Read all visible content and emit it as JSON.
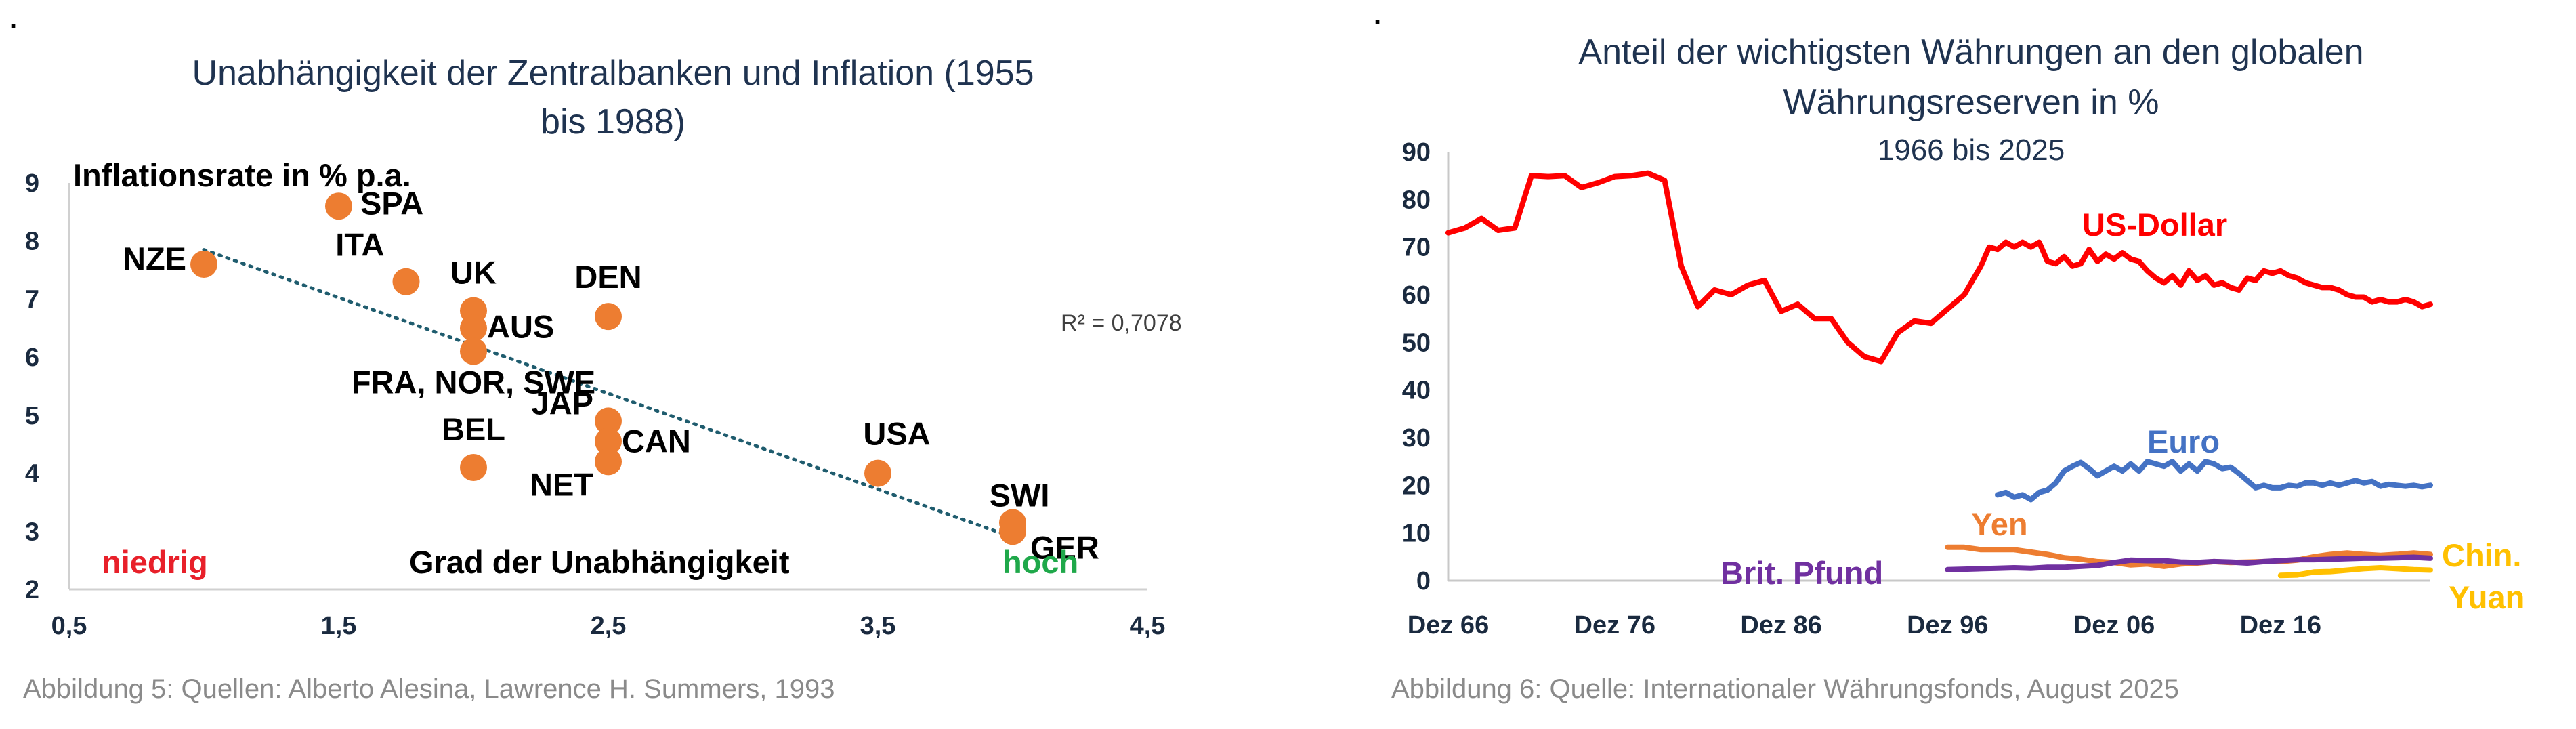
{
  "charts": [
    {
      "title_line1": "Unabhängigkeit der Zentralbanken und Inflation (1955",
      "title_line2": "bis 1988)",
      "caption": "Abbildung 5: Quellen: Alberto Alesina, Lawrence H. Summers, 1993",
      "annotations": {
        "ylabel": "Inflationsrate in % p.a.",
        "xlabel": "Grad der Unabhängigkeit",
        "low": "niedrig",
        "high": "hoch",
        "r2": "R² = 0,7078"
      },
      "colors": {
        "points": "#ed7d31",
        "trend": "#1f5c6e",
        "low": "#e8202a",
        "high": "#1fa84a"
      }
    },
    {
      "title_line1": "Anteil der wichtigsten Währungen an den globalen",
      "title_line2": "Währungsreserven in %",
      "subtitle": "1966 bis 2025",
      "caption": "Abbildung 6: Quelle: Internationaler Währungsfonds, August 2025"
    }
  ],
  "chart_data": [
    {
      "type": "scatter",
      "xlim": [
        0.5,
        4.5
      ],
      "ylim": [
        2,
        9
      ],
      "xticks": [
        "0,5",
        "1,5",
        "2,5",
        "3,5",
        "4,5"
      ],
      "yticks": [
        "2",
        "3",
        "4",
        "5",
        "6",
        "7",
        "8",
        "9"
      ],
      "points": [
        {
          "label": "NZE",
          "x": 1.0,
          "y": 7.6
        },
        {
          "label": "SPA",
          "x": 1.5,
          "y": 8.6
        },
        {
          "label": "ITA",
          "x": 1.75,
          "y": 7.3
        },
        {
          "label": "UK",
          "x": 2.0,
          "y": 6.8
        },
        {
          "label": "AUS",
          "x": 2.0,
          "y": 6.5
        },
        {
          "label": "FRA, NOR, SWE",
          "x": 2.0,
          "y": 6.1
        },
        {
          "label": "DEN",
          "x": 2.5,
          "y": 6.7
        },
        {
          "label": "BEL",
          "x": 2.0,
          "y": 4.1
        },
        {
          "label": "JAP",
          "x": 2.5,
          "y": 4.9
        },
        {
          "label": "CAN",
          "x": 2.5,
          "y": 4.55
        },
        {
          "label": "NET",
          "x": 2.5,
          "y": 4.2
        },
        {
          "label": "USA",
          "x": 3.5,
          "y": 4.0
        },
        {
          "label": "SWI",
          "x": 4.0,
          "y": 3.15
        },
        {
          "label": "GER",
          "x": 4.0,
          "y": 3.0
        }
      ],
      "trendline": {
        "x": [
          1.0,
          4.0
        ],
        "y": [
          7.85,
          2.9
        ]
      }
    },
    {
      "type": "line",
      "ylim": [
        0,
        90
      ],
      "yticks": [
        "0",
        "10",
        "20",
        "30",
        "40",
        "50",
        "60",
        "70",
        "80",
        "90"
      ],
      "xlim": [
        1966,
        2025
      ],
      "xticks": [
        {
          "label": "Dez 66",
          "x": 1966
        },
        {
          "label": "Dez 76",
          "x": 1976
        },
        {
          "label": "Dez 86",
          "x": 1986
        },
        {
          "label": "Dez 96",
          "x": 1996
        },
        {
          "label": "Dez 06",
          "x": 2006
        },
        {
          "label": "Dez 16",
          "x": 2016
        }
      ],
      "series": [
        {
          "name": "US-Dollar",
          "color": "#ff0000",
          "points": [
            [
              1966,
              73
            ],
            [
              1967,
              74
            ],
            [
              1968,
              76
            ],
            [
              1969,
              73.5
            ],
            [
              1970,
              74
            ],
            [
              1971,
              85
            ],
            [
              1972,
              84.8
            ],
            [
              1973,
              85
            ],
            [
              1974,
              82.5
            ],
            [
              1975,
              83.5
            ],
            [
              1976,
              84.8
            ],
            [
              1977,
              85
            ],
            [
              1978,
              85.5
            ],
            [
              1979,
              84
            ],
            [
              1980,
              66
            ],
            [
              1981,
              57.5
            ],
            [
              1982,
              61
            ],
            [
              1983,
              60
            ],
            [
              1984,
              62
            ],
            [
              1985,
              63
            ],
            [
              1986,
              56.5
            ],
            [
              1987,
              58
            ],
            [
              1988,
              55
            ],
            [
              1989,
              55
            ],
            [
              1990,
              50
            ],
            [
              1991,
              47
            ],
            [
              1992,
              46
            ],
            [
              1993,
              52
            ],
            [
              1994,
              54.5
            ],
            [
              1995,
              54
            ],
            [
              1996,
              57
            ],
            [
              1997,
              60
            ],
            [
              1998,
              66
            ],
            [
              1998.5,
              70
            ],
            [
              1999,
              69.5
            ],
            [
              1999.5,
              71
            ],
            [
              2000,
              70
            ],
            [
              2000.5,
              71
            ],
            [
              2001,
              70
            ],
            [
              2001.5,
              71
            ],
            [
              2002,
              67
            ],
            [
              2002.5,
              66.5
            ],
            [
              2003,
              68
            ],
            [
              2003.5,
              66
            ],
            [
              2004,
              66.5
            ],
            [
              2004.5,
              69.5
            ],
            [
              2005,
              67
            ],
            [
              2005.5,
              68.5
            ],
            [
              2006,
              67.5
            ],
            [
              2006.5,
              68.8
            ],
            [
              2007,
              67.5
            ],
            [
              2007.5,
              67
            ],
            [
              2008,
              65
            ],
            [
              2008.5,
              63.5
            ],
            [
              2009,
              62.5
            ],
            [
              2009.5,
              64
            ],
            [
              2010,
              62
            ],
            [
              2010.5,
              65
            ],
            [
              2011,
              63
            ],
            [
              2011.5,
              64
            ],
            [
              2012,
              62
            ],
            [
              2012.5,
              62.5
            ],
            [
              2013,
              61.5
            ],
            [
              2013.5,
              61
            ],
            [
              2014,
              63.5
            ],
            [
              2014.5,
              63
            ],
            [
              2015,
              65
            ],
            [
              2015.5,
              64.5
            ],
            [
              2016,
              65
            ],
            [
              2016.5,
              64
            ],
            [
              2017,
              63.5
            ],
            [
              2017.5,
              62.5
            ],
            [
              2018,
              62
            ],
            [
              2018.5,
              61.5
            ],
            [
              2019,
              61.5
            ],
            [
              2019.5,
              61
            ],
            [
              2020,
              60
            ],
            [
              2020.5,
              59.5
            ],
            [
              2021,
              59.5
            ],
            [
              2021.5,
              58.5
            ],
            [
              2022,
              59
            ],
            [
              2022.5,
              58.5
            ],
            [
              2023,
              58.5
            ],
            [
              2023.5,
              59
            ],
            [
              2024,
              58.5
            ],
            [
              2024.5,
              57.5
            ],
            [
              2025,
              58
            ]
          ]
        },
        {
          "name": "Euro",
          "color": "#4472c4",
          "points": [
            [
              1999,
              18
            ],
            [
              1999.5,
              18.5
            ],
            [
              2000,
              17.5
            ],
            [
              2000.5,
              18
            ],
            [
              2001,
              17
            ],
            [
              2001.5,
              18.5
            ],
            [
              2002,
              19
            ],
            [
              2002.5,
              20.5
            ],
            [
              2003,
              23
            ],
            [
              2003.5,
              24
            ],
            [
              2004,
              24.8
            ],
            [
              2004.5,
              23.5
            ],
            [
              2005,
              22
            ],
            [
              2005.5,
              23
            ],
            [
              2006,
              24
            ],
            [
              2006.5,
              23
            ],
            [
              2007,
              24.5
            ],
            [
              2007.5,
              23
            ],
            [
              2008,
              25
            ],
            [
              2008.5,
              24.5
            ],
            [
              2009,
              24
            ],
            [
              2009.5,
              25
            ],
            [
              2010,
              23
            ],
            [
              2010.5,
              24.5
            ],
            [
              2011,
              23
            ],
            [
              2011.5,
              25
            ],
            [
              2012,
              24.5
            ],
            [
              2012.5,
              23.5
            ],
            [
              2013,
              23.8
            ],
            [
              2013.5,
              22.5
            ],
            [
              2014,
              21
            ],
            [
              2014.5,
              19.5
            ],
            [
              2015,
              20
            ],
            [
              2015.5,
              19.5
            ],
            [
              2016,
              19.5
            ],
            [
              2016.5,
              20
            ],
            [
              2017,
              19.8
            ],
            [
              2017.5,
              20.5
            ],
            [
              2018,
              20.5
            ],
            [
              2018.5,
              20
            ],
            [
              2019,
              20.5
            ],
            [
              2019.5,
              20
            ],
            [
              2020,
              20.5
            ],
            [
              2020.5,
              21
            ],
            [
              2021,
              20.5
            ],
            [
              2021.5,
              20.8
            ],
            [
              2022,
              19.8
            ],
            [
              2022.5,
              20.2
            ],
            [
              2023,
              20
            ],
            [
              2023.5,
              19.8
            ],
            [
              2024,
              20
            ],
            [
              2024.5,
              19.7
            ],
            [
              2025,
              20
            ]
          ]
        },
        {
          "name": "Yen",
          "color": "#ed7d31",
          "points": [
            [
              1996,
              7
            ],
            [
              1997,
              7
            ],
            [
              1998,
              6.5
            ],
            [
              1999,
              6.5
            ],
            [
              2000,
              6.5
            ],
            [
              2001,
              6
            ],
            [
              2002,
              5.5
            ],
            [
              2003,
              4.8
            ],
            [
              2004,
              4.5
            ],
            [
              2005,
              4
            ],
            [
              2006,
              3.8
            ],
            [
              2007,
              3.3
            ],
            [
              2008,
              3.5
            ],
            [
              2009,
              3
            ],
            [
              2010,
              3.5
            ],
            [
              2011,
              3.7
            ],
            [
              2012,
              4
            ],
            [
              2013,
              3.8
            ],
            [
              2014,
              3.9
            ],
            [
              2015,
              4
            ],
            [
              2016,
              4
            ],
            [
              2017,
              4.3
            ],
            [
              2018,
              5
            ],
            [
              2019,
              5.5
            ],
            [
              2020,
              5.8
            ],
            [
              2021,
              5.5
            ],
            [
              2022,
              5.3
            ],
            [
              2023,
              5.5
            ],
            [
              2024,
              5.8
            ],
            [
              2025,
              5.5
            ]
          ]
        },
        {
          "name": "Brit. Pfund",
          "color": "#7030a0",
          "points": [
            [
              1996,
              2.3
            ],
            [
              1997,
              2.4
            ],
            [
              1998,
              2.5
            ],
            [
              1999,
              2.6
            ],
            [
              2000,
              2.7
            ],
            [
              2001,
              2.6
            ],
            [
              2002,
              2.8
            ],
            [
              2003,
              2.8
            ],
            [
              2004,
              3
            ],
            [
              2005,
              3.2
            ],
            [
              2006,
              3.8
            ],
            [
              2007,
              4.3
            ],
            [
              2008,
              4.2
            ],
            [
              2009,
              4.2
            ],
            [
              2010,
              3.9
            ],
            [
              2011,
              3.8
            ],
            [
              2012,
              4
            ],
            [
              2013,
              3.9
            ],
            [
              2014,
              3.7
            ],
            [
              2015,
              4
            ],
            [
              2016,
              4.2
            ],
            [
              2017,
              4.4
            ],
            [
              2018,
              4.4
            ],
            [
              2019,
              4.5
            ],
            [
              2020,
              4.6
            ],
            [
              2021,
              4.7
            ],
            [
              2022,
              4.7
            ],
            [
              2023,
              4.8
            ],
            [
              2024,
              4.9
            ],
            [
              2025,
              4.7
            ]
          ]
        },
        {
          "name": "Chin. Yuan",
          "color": "#ffc000",
          "points": [
            [
              2016,
              1.1
            ],
            [
              2017,
              1.2
            ],
            [
              2018,
              1.8
            ],
            [
              2019,
              1.9
            ],
            [
              2020,
              2.2
            ],
            [
              2021,
              2.5
            ],
            [
              2022,
              2.7
            ],
            [
              2023,
              2.5
            ],
            [
              2024,
              2.3
            ],
            [
              2025,
              2.2
            ]
          ]
        }
      ]
    }
  ]
}
